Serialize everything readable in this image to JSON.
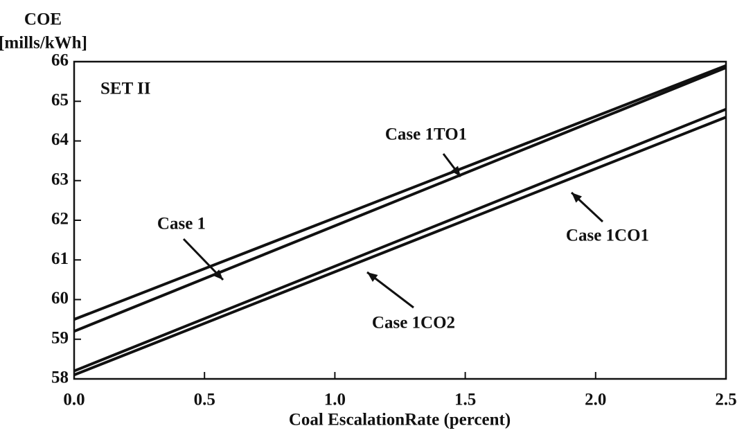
{
  "chart_data": {
    "type": "line",
    "ylabel": [
      "COE",
      "[mills/kWh]"
    ],
    "xlabel": "Coal EscalationRate (percent)",
    "annotations": [
      "SET II",
      "Case 1TO1",
      "Case 1",
      "Case 1CO1",
      "Case 1CO2"
    ],
    "x": [
      0,
      2.5
    ],
    "series": [
      {
        "name": "Case 1TO1",
        "color": "#111111",
        "values": [
          59.5,
          65.9
        ]
      },
      {
        "name": "Case 1",
        "color": "#111111",
        "values": [
          59.2,
          65.85
        ]
      },
      {
        "name": "Case 1CO2",
        "color": "#111111",
        "values": [
          58.2,
          64.8
        ]
      },
      {
        "name": "Case 1CO1",
        "color": "#111111",
        "values": [
          58.1,
          64.6
        ]
      }
    ],
    "xlim": [
      0,
      2.5
    ],
    "xticks": [
      {
        "value": 0,
        "label": "0.0"
      },
      {
        "value": 0.5,
        "label": "0.5"
      },
      {
        "value": 1,
        "label": "1.0"
      },
      {
        "value": 1.5,
        "label": "1.5"
      },
      {
        "value": 2,
        "label": "2.0"
      },
      {
        "value": 2.5,
        "label": "2.5"
      }
    ],
    "ylim": [
      58,
      66
    ],
    "yticks": [
      58,
      59,
      60,
      61,
      62,
      63,
      64,
      65,
      66
    ]
  }
}
